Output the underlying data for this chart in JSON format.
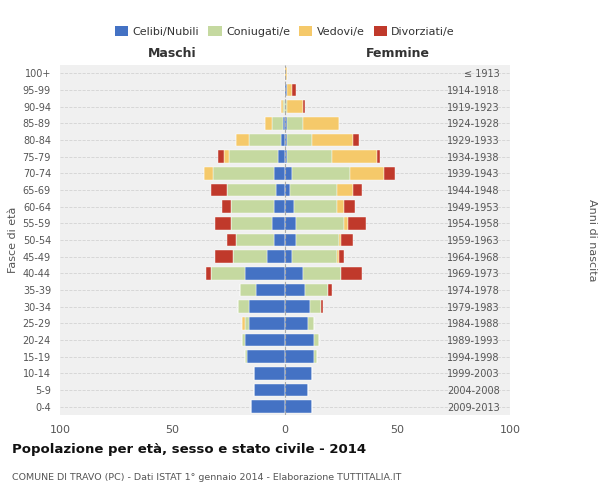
{
  "age_groups": [
    "0-4",
    "5-9",
    "10-14",
    "15-19",
    "20-24",
    "25-29",
    "30-34",
    "35-39",
    "40-44",
    "45-49",
    "50-54",
    "55-59",
    "60-64",
    "65-69",
    "70-74",
    "75-79",
    "80-84",
    "85-89",
    "90-94",
    "95-99",
    "100+"
  ],
  "birth_years": [
    "2009-2013",
    "2004-2008",
    "1999-2003",
    "1994-1998",
    "1989-1993",
    "1984-1988",
    "1979-1983",
    "1974-1978",
    "1969-1973",
    "1964-1968",
    "1959-1963",
    "1954-1958",
    "1949-1953",
    "1944-1948",
    "1939-1943",
    "1934-1938",
    "1929-1933",
    "1924-1928",
    "1919-1923",
    "1914-1918",
    "≤ 1913"
  ],
  "colors": {
    "celibi": "#4472C4",
    "coniugati": "#C5D9A0",
    "vedovi": "#F5C96A",
    "divorziati": "#C0392B"
  },
  "males": {
    "celibi": [
      15,
      14,
      14,
      17,
      18,
      16,
      16,
      13,
      18,
      8,
      5,
      6,
      5,
      4,
      5,
      3,
      2,
      1,
      0,
      0,
      0
    ],
    "coniugati": [
      0,
      0,
      0,
      1,
      1,
      2,
      5,
      7,
      15,
      15,
      17,
      18,
      19,
      22,
      27,
      22,
      14,
      5,
      1,
      0,
      0
    ],
    "vedovi": [
      0,
      0,
      0,
      0,
      0,
      1,
      0,
      0,
      0,
      0,
      0,
      0,
      0,
      0,
      4,
      2,
      6,
      3,
      1,
      0,
      0
    ],
    "divorziati": [
      0,
      0,
      0,
      0,
      0,
      0,
      0,
      0,
      2,
      8,
      4,
      7,
      4,
      7,
      0,
      3,
      0,
      0,
      0,
      0,
      0
    ]
  },
  "females": {
    "celibi": [
      12,
      10,
      12,
      13,
      13,
      10,
      11,
      9,
      8,
      3,
      5,
      5,
      4,
      2,
      3,
      1,
      1,
      1,
      0,
      1,
      0
    ],
    "coniugati": [
      0,
      0,
      0,
      1,
      2,
      3,
      5,
      10,
      17,
      20,
      19,
      21,
      19,
      21,
      26,
      20,
      11,
      7,
      1,
      0,
      0
    ],
    "vedovi": [
      0,
      0,
      0,
      0,
      0,
      0,
      0,
      0,
      0,
      1,
      1,
      2,
      3,
      7,
      15,
      20,
      18,
      16,
      7,
      2,
      1
    ],
    "divorziati": [
      0,
      0,
      0,
      0,
      0,
      0,
      1,
      2,
      9,
      2,
      5,
      8,
      5,
      4,
      5,
      1,
      3,
      0,
      1,
      2,
      0
    ]
  },
  "title": "Popolazione per età, sesso e stato civile - 2014",
  "subtitle": "COMUNE DI TRAVO (PC) - Dati ISTAT 1° gennaio 2014 - Elaborazione TUTTITALIA.IT",
  "xlabel_left": "Maschi",
  "xlabel_right": "Femmine",
  "ylabel_left": "Fasce di età",
  "ylabel_right": "Anni di nascita",
  "legend_labels": [
    "Celibi/Nubili",
    "Coniugati/e",
    "Vedovi/e",
    "Divorziati/e"
  ],
  "xlim": 100,
  "background_color": "#ffffff",
  "grid_color": "#cccccc"
}
